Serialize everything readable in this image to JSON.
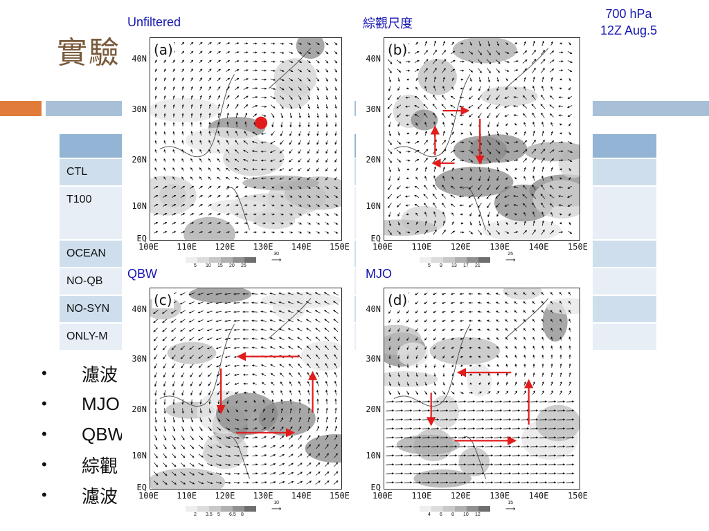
{
  "slide": {
    "title": "實驗",
    "table": {
      "rows": [
        "CTL",
        "T100",
        "OCEAN",
        "NO-QB",
        "NO-SYN",
        "ONLY-M"
      ]
    },
    "bullets": [
      "濾波",
      "MJO",
      "QBW",
      "綜觀",
      "濾波"
    ]
  },
  "figure": {
    "top_right": {
      "level": "700 hPa",
      "time": "12Z Aug.5"
    },
    "labels": {
      "a": "Unfiltered",
      "b": "綜觀尺度",
      "c": "QBW",
      "d": "MJO"
    },
    "panels": [
      {
        "letter": "(a)",
        "scale": [
          "5",
          "10",
          "15",
          "20",
          "25"
        ],
        "ref": "30"
      },
      {
        "letter": "(b)",
        "scale": [
          "5",
          "9",
          "13",
          "17",
          "21"
        ],
        "ref": "25"
      },
      {
        "letter": "(c)",
        "scale": [
          "2",
          "3.5",
          "5",
          "6.5",
          "8"
        ],
        "ref": "10"
      },
      {
        "letter": "(d)",
        "scale": [
          "4",
          "6",
          "8",
          "10",
          "12"
        ],
        "ref": "15"
      }
    ],
    "lat_ticks": [
      "40N",
      "30N",
      "20N",
      "10N",
      "EQ"
    ],
    "lon_ticks": [
      "100E",
      "110E",
      "120E",
      "130E",
      "140E",
      "150E"
    ],
    "colors": {
      "arrow_red": "#e21b1b",
      "label_blue": "#1515b0",
      "shade_gray": "#bdbdbd"
    }
  }
}
